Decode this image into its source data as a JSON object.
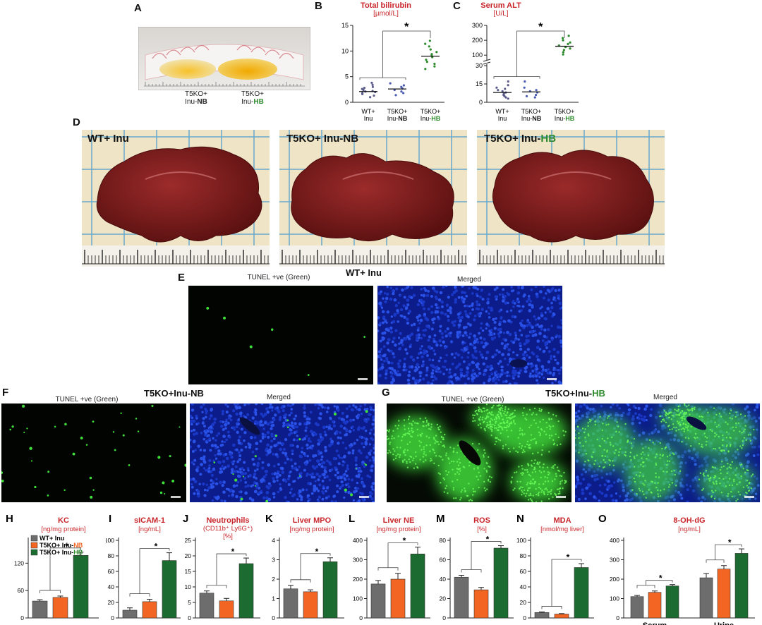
{
  "panels": {
    "A": {
      "letter": "A",
      "tube_labels": [
        {
          "line1": "T5KO+",
          "line2a": "Inu-",
          "line2b": "NB",
          "accent": "#111111"
        },
        {
          "line1": "T5KO+",
          "line2a": "Inu-",
          "line2b": "HB",
          "accent": "#2e8b2e"
        }
      ]
    },
    "B": {
      "letter": "B"
    },
    "C": {
      "letter": "C"
    },
    "D": {
      "letter": "D",
      "photos": [
        {
          "label_a": "WT+ Inu",
          "label_b": "",
          "accent": "#111111"
        },
        {
          "label_a": "T5KO+ Inu-NB",
          "label_b": "",
          "accent": "#111111"
        },
        {
          "label_a": "T5KO+ Inu-",
          "label_b": "HB",
          "accent": "#2e8b2e"
        }
      ]
    },
    "E": {
      "letter": "E",
      "title": "WT+ Inu",
      "left_caption": "TUNEL +ve (Green)",
      "right_caption": "Merged"
    },
    "F": {
      "letter": "F",
      "title": "T5KO+Inu-NB",
      "left_caption": "TUNEL +ve (Green)",
      "right_caption": "Merged"
    },
    "G": {
      "letter": "G",
      "title_a": "T5KO+Inu-",
      "title_b": "HB",
      "left_caption": "TUNEL +ve (Green)",
      "right_caption": "Merged"
    }
  },
  "colors": {
    "title_red": "#c8252b",
    "wt": "#6d6d6d",
    "nb": "#f26522",
    "hb": "#1c6b30",
    "hb_text": "#2e8b2e",
    "dots_wt": "#5a5a8a",
    "dots_nb": "#4a5ab0",
    "dots_hb": "#2e8b2e"
  },
  "legend": [
    {
      "text_a": "WT+ Inu",
      "text_b": "",
      "color": "#6d6d6d",
      "accent": "#111111"
    },
    {
      "text_a": "T5KO+ Inu-",
      "text_b": "NB",
      "color": "#f26522",
      "accent": "#f26522"
    },
    {
      "text_a": "T5KO+ Inu-",
      "text_b": "HB",
      "color": "#1c6b30",
      "accent": "#2e8b2e"
    }
  ],
  "chart_data": [
    {
      "id": "B",
      "type": "scatter",
      "title": "Total bilirubin",
      "unit": "[µmol/L]",
      "yticks": [
        "0",
        "5",
        "10",
        "15"
      ],
      "ylim": [
        0,
        15
      ],
      "categories": [
        {
          "a": "WT+",
          "b1": "Inu",
          "b2": "",
          "accent": "#111111"
        },
        {
          "a": "T5KO+",
          "b1": "Inu-",
          "b2": "NB",
          "accent": "#111111"
        },
        {
          "a": "T5KO+",
          "b1": "Inu-",
          "b2": "HB",
          "accent": "#2e8b2e"
        }
      ],
      "means": [
        2.1,
        2.6,
        9.0
      ],
      "significance": "*",
      "points": [
        [
          1.0,
          1.3,
          1.6,
          1.8,
          2.0,
          2.1,
          2.2,
          2.4,
          2.6,
          2.8,
          3.0,
          3.4,
          3.8
        ],
        [
          1.4,
          1.8,
          2.1,
          2.4,
          2.7,
          3.0,
          3.3,
          3.7
        ],
        [
          6.5,
          7.0,
          7.5,
          7.9,
          8.3,
          8.8,
          9.1,
          9.4,
          9.8,
          10.3,
          10.9,
          11.4,
          12.0
        ]
      ]
    },
    {
      "id": "C",
      "type": "scatter",
      "title": "Serum ALT",
      "unit": "[U/L]",
      "yticks": [
        "0",
        "15",
        "30",
        "100",
        "200",
        "300"
      ],
      "ylim": [
        0,
        300
      ],
      "axis_break": true,
      "categories": [
        {
          "a": "WT+",
          "b1": "Inu",
          "b2": "",
          "accent": "#111111"
        },
        {
          "a": "T5KO+",
          "b1": "Inu-",
          "b2": "NB",
          "accent": "#111111"
        },
        {
          "a": "T5KO+",
          "b1": "Inu-",
          "b2": "HB",
          "accent": "#2e8b2e"
        }
      ],
      "means": [
        8,
        8.5,
        160
      ],
      "significance": "*",
      "points": [
        [
          3,
          4,
          5,
          6,
          7,
          8,
          9,
          10,
          11,
          12,
          14,
          17
        ],
        [
          4,
          5,
          6,
          8,
          9,
          10,
          12,
          17
        ],
        [
          105,
          120,
          135,
          145,
          155,
          165,
          175,
          185,
          200,
          215,
          230
        ]
      ]
    },
    {
      "id": "H",
      "type": "bar",
      "title_a": "KC",
      "title_b": "",
      "unit": "[ng/mg protein]",
      "yticks": [
        "0",
        "60",
        "120"
      ],
      "ylim": [
        0,
        170
      ],
      "values": [
        37,
        45,
        137
      ],
      "errors": [
        3,
        3,
        7
      ],
      "significance": "*",
      "xgroups": []
    },
    {
      "id": "I",
      "type": "bar",
      "title_a": "sICAM-1",
      "title_b": "",
      "unit": "[ng/mL]",
      "yticks": [
        "0",
        "20",
        "40",
        "60",
        "80",
        "100"
      ],
      "ylim": [
        0,
        100
      ],
      "values": [
        10,
        21,
        74
      ],
      "errors": [
        3,
        3,
        10
      ],
      "significance": "*",
      "xgroups": []
    },
    {
      "id": "J",
      "type": "bar",
      "title_a": "Neutrophils",
      "title_b": "(CD11b⁺ Ly6G⁺)",
      "unit": "[%]",
      "yticks": [
        "0",
        "5",
        "10",
        "15",
        "20",
        "25"
      ],
      "ylim": [
        0,
        25
      ],
      "values": [
        8,
        5.5,
        17.5
      ],
      "errors": [
        0.7,
        0.8,
        1.8
      ],
      "significance": "*",
      "xgroups": []
    },
    {
      "id": "K",
      "type": "bar",
      "title_a": "Liver MPO",
      "title_b": "",
      "unit": "[ng/mg protein]",
      "yticks": [
        "0",
        "1",
        "2",
        "3",
        "4"
      ],
      "ylim": [
        0,
        4
      ],
      "values": [
        1.5,
        1.35,
        2.9
      ],
      "errors": [
        0.18,
        0.1,
        0.2
      ],
      "significance": "*",
      "xgroups": []
    },
    {
      "id": "L",
      "type": "bar",
      "title_a": "Liver NE",
      "title_b": "",
      "unit": "[ng/mg protein]",
      "yticks": [
        "0",
        "100",
        "200",
        "300",
        "400"
      ],
      "ylim": [
        0,
        400
      ],
      "values": [
        175,
        200,
        330
      ],
      "errors": [
        18,
        30,
        35
      ],
      "significance": "*",
      "xgroups": []
    },
    {
      "id": "M",
      "type": "bar",
      "title_a": "ROS",
      "title_b": "",
      "unit": "[%]",
      "yticks": [
        "0",
        "20",
        "40",
        "60",
        "80"
      ],
      "ylim": [
        0,
        80
      ],
      "values": [
        42,
        29,
        72
      ],
      "errors": [
        2,
        2.5,
        2.5
      ],
      "significance": "*",
      "xgroups": []
    },
    {
      "id": "N",
      "type": "bar",
      "title_a": "MDA",
      "title_b": "",
      "unit": "[nmol/mg liver]",
      "yticks": [
        "0",
        "20",
        "40",
        "60",
        "80",
        "100"
      ],
      "ylim": [
        0,
        100
      ],
      "values": [
        7,
        5,
        65
      ],
      "errors": [
        0.8,
        0.6,
        5
      ],
      "significance": "*",
      "xgroups": []
    },
    {
      "id": "O",
      "type": "bar",
      "title_a": "8-OH-dG",
      "title_b": "",
      "unit": "[ng/mL]",
      "yticks": [
        "0",
        "100",
        "200",
        "300",
        "400"
      ],
      "ylim": [
        0,
        400
      ],
      "groups": [
        {
          "values": [
            110,
            132,
            165
          ],
          "errors": [
            6,
            7,
            7
          ]
        },
        {
          "values": [
            207,
            252,
            333
          ],
          "errors": [
            22,
            18,
            23
          ]
        }
      ],
      "xgroups": [
        "Serum",
        "Urine"
      ],
      "significance": "*"
    }
  ]
}
